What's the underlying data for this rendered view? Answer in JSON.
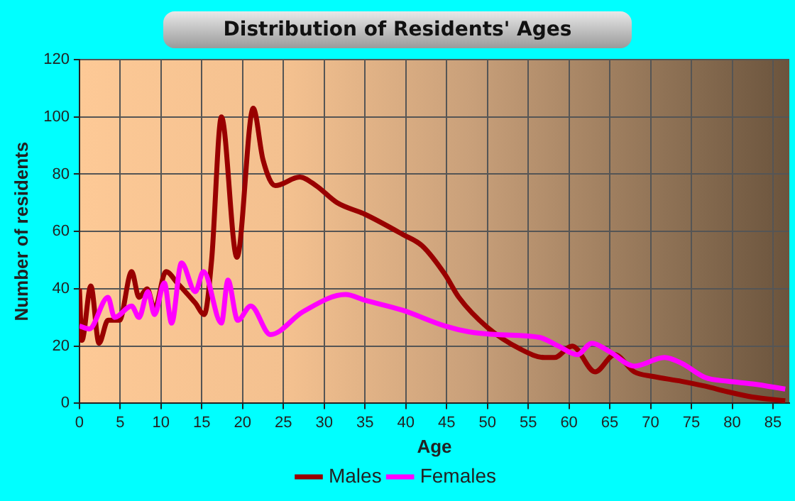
{
  "chart_data": {
    "type": "line",
    "title": "Distribution of Residents' Ages",
    "xlabel": "Age",
    "ylabel": "Number of residents",
    "xlim": [
      0,
      87
    ],
    "xticks": [
      0,
      5,
      10,
      15,
      20,
      25,
      30,
      35,
      40,
      45,
      50,
      55,
      60,
      65,
      70,
      75,
      80,
      85
    ],
    "ylim": [
      0,
      120
    ],
    "yticks": [
      0,
      20,
      40,
      60,
      80,
      100,
      120
    ],
    "grid": true,
    "legend": "bottom",
    "marker": "none",
    "line_style": "solid",
    "series": [
      {
        "name": "Males",
        "color": "#990000",
        "x": [
          0,
          0.3,
          1.4,
          2.4,
          3.5,
          4.9,
          6.4,
          7.3,
          8.3,
          9.2,
          10.6,
          12,
          14.2,
          15.3,
          16.2,
          17.4,
          19.3,
          21.3,
          22.5,
          24,
          27,
          29,
          31.6,
          35,
          39.6,
          42,
          44.8,
          46.5,
          50,
          54,
          57,
          58.2,
          60.4,
          63.2,
          65.6,
          68,
          70.3,
          73.8,
          76.7,
          79.5,
          82.5,
          86.5
        ],
        "values": [
          40,
          22,
          41,
          21,
          29,
          29,
          46,
          37,
          40,
          33,
          46,
          42,
          35,
          31,
          50,
          100,
          51,
          103,
          85,
          76,
          79,
          76,
          70,
          66,
          59,
          55,
          45,
          37,
          26.5,
          19,
          16,
          16,
          20,
          11,
          17,
          11,
          9.4,
          7.7,
          6,
          4,
          2.2,
          0.9
        ]
      },
      {
        "name": "Females",
        "color": "#ff00ff",
        "x": [
          0,
          1.2,
          3.5,
          4.3,
          6.4,
          7.3,
          8.4,
          9.2,
          10.4,
          11.3,
          12.5,
          14.2,
          15.2,
          17.4,
          18.2,
          19.4,
          21,
          23.4,
          27.4,
          32.6,
          35,
          39.6,
          44.8,
          47.7,
          51.2,
          56.4,
          58.7,
          61,
          62.8,
          65,
          68,
          71.7,
          73.8,
          76.7,
          79.5,
          82.5,
          86.5
        ],
        "values": [
          27,
          26,
          37,
          30,
          34,
          30,
          39,
          31,
          42,
          28,
          49,
          39,
          46,
          28,
          43,
          29,
          34,
          24,
          32,
          38,
          36,
          32.5,
          27,
          25,
          24,
          23,
          20,
          17,
          21,
          18,
          13,
          16,
          14,
          9,
          7.7,
          6.8,
          5
        ]
      }
    ]
  }
}
